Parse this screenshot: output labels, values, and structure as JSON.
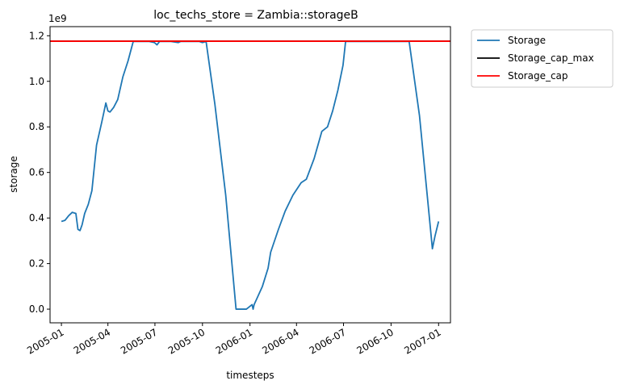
{
  "chart_data": {
    "type": "line",
    "title": "loc_techs_store = Zambia::storageB",
    "xlabel": "timesteps",
    "ylabel": "storage",
    "y_offset_label": "1e9",
    "x_axis_type": "date",
    "xlim": [
      "2004-12-10",
      "2007-01-24"
    ],
    "ylim": [
      -0.06,
      1.24
    ],
    "grid": false,
    "legend_placement": "outside-right",
    "x_ticks": [
      {
        "date": "2005-01-01",
        "label": "2005-01"
      },
      {
        "date": "2005-04-01",
        "label": "2005-04"
      },
      {
        "date": "2005-07-01",
        "label": "2005-07"
      },
      {
        "date": "2005-10-01",
        "label": "2005-10"
      },
      {
        "date": "2006-01-01",
        "label": "2006-01"
      },
      {
        "date": "2006-04-01",
        "label": "2006-04"
      },
      {
        "date": "2006-07-01",
        "label": "2006-07"
      },
      {
        "date": "2006-10-01",
        "label": "2006-10"
      },
      {
        "date": "2007-01-01",
        "label": "2007-01"
      }
    ],
    "y_ticks": [
      {
        "value": 0.0,
        "label": "0.0"
      },
      {
        "value": 0.2,
        "label": "0.2"
      },
      {
        "value": 0.4,
        "label": "0.4"
      },
      {
        "value": 0.6,
        "label": "0.6"
      },
      {
        "value": 0.8,
        "label": "0.8"
      },
      {
        "value": 1.0,
        "label": "1.0"
      },
      {
        "value": 1.2,
        "label": "1.2"
      }
    ],
    "series": [
      {
        "name": "Storage",
        "color": "#1f77b4",
        "x": [
          "2005-01-01",
          "2005-01-08",
          "2005-01-15",
          "2005-01-22",
          "2005-01-29",
          "2005-02-02",
          "2005-02-06",
          "2005-02-10",
          "2005-02-15",
          "2005-02-22",
          "2005-03-01",
          "2005-03-10",
          "2005-03-20",
          "2005-03-28",
          "2005-04-01",
          "2005-04-05",
          "2005-04-12",
          "2005-04-20",
          "2005-04-30",
          "2005-05-10",
          "2005-05-20",
          "2005-05-31",
          "2005-06-10",
          "2005-06-20",
          "2005-06-30",
          "2005-07-05",
          "2005-07-10",
          "2005-07-20",
          "2005-08-01",
          "2005-08-15",
          "2005-08-20",
          "2005-09-01",
          "2005-09-15",
          "2005-09-25",
          "2005-10-01",
          "2005-10-08",
          "2005-10-25",
          "2005-11-15",
          "2005-12-05",
          "2005-12-25",
          "2006-01-05",
          "2006-01-07",
          "2006-01-09",
          "2006-01-15",
          "2006-01-25",
          "2006-02-05",
          "2006-02-10",
          "2006-02-25",
          "2006-03-10",
          "2006-03-25",
          "2006-04-10",
          "2006-04-20",
          "2006-05-05",
          "2006-05-20",
          "2006-05-31",
          "2006-06-10",
          "2006-06-20",
          "2006-06-30",
          "2006-07-05",
          "2006-07-15",
          "2006-08-01",
          "2006-09-01",
          "2006-10-01",
          "2006-10-15",
          "2006-11-01",
          "2006-11-05",
          "2006-11-25",
          "2006-12-10",
          "2006-12-20",
          "2006-12-25",
          "2007-01-01"
        ],
        "values": [
          0.385,
          0.39,
          0.41,
          0.425,
          0.42,
          0.35,
          0.345,
          0.37,
          0.42,
          0.46,
          0.52,
          0.72,
          0.82,
          0.905,
          0.87,
          0.865,
          0.885,
          0.92,
          1.02,
          1.09,
          1.175,
          1.175,
          1.175,
          1.175,
          1.17,
          1.16,
          1.175,
          1.175,
          1.175,
          1.17,
          1.175,
          1.175,
          1.175,
          1.175,
          1.17,
          1.175,
          0.9,
          0.5,
          0.0,
          0.0,
          0.02,
          0.0,
          0.02,
          0.05,
          0.1,
          0.18,
          0.25,
          0.35,
          0.43,
          0.5,
          0.555,
          0.57,
          0.66,
          0.78,
          0.8,
          0.87,
          0.96,
          1.07,
          1.175,
          1.175,
          1.175,
          1.175,
          1.175,
          1.175,
          1.175,
          1.175,
          0.85,
          0.5,
          0.265,
          0.32,
          0.385
        ]
      },
      {
        "name": "Storage_cap_max",
        "color": "#000000",
        "constant": 1.176
      },
      {
        "name": "Storage_cap",
        "color": "#ff0000",
        "constant": 1.176
      }
    ]
  }
}
